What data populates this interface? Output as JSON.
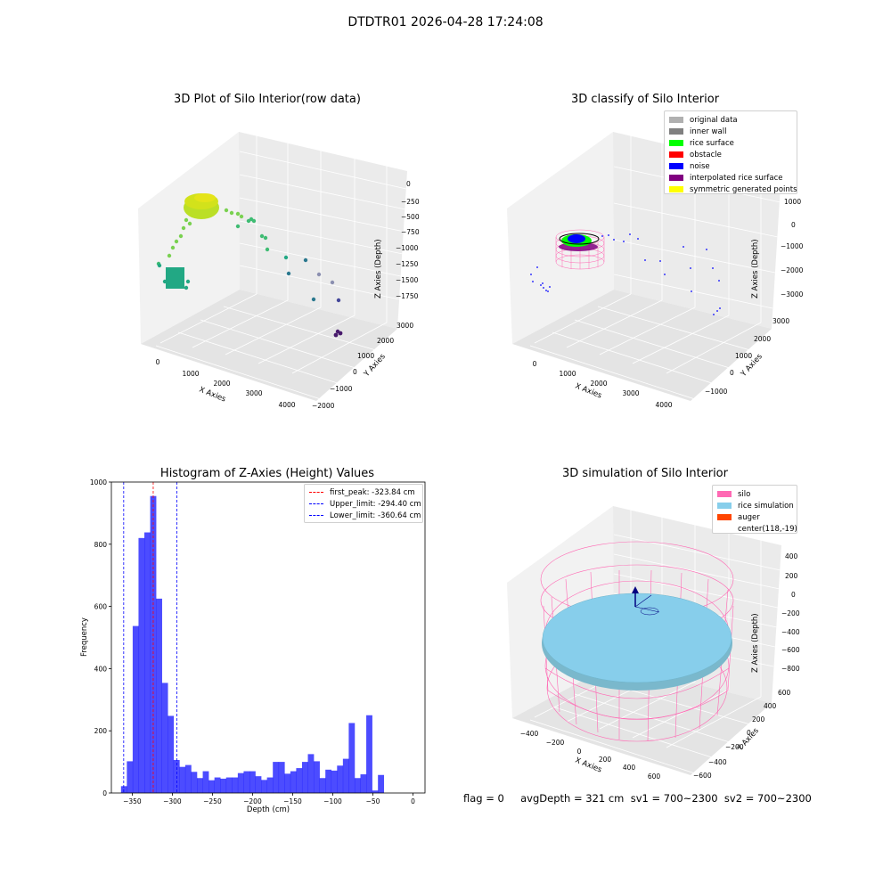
{
  "suptitle": "DTDTR01 2026-04-28 17:24:08",
  "footer": {
    "text": "flag = 0     avgDepth = 321 cm  sv1 = 700~2300  sv2 = 700~2300"
  },
  "chart_data": [
    {
      "type": "scatter",
      "title": "3D Plot of Silo Interior(row data)",
      "xlabel": "X Axies",
      "ylabel": "Y Axies",
      "zlabel": "Z Axies (Depth)",
      "x_ticks": [
        "0",
        "1000",
        "2000",
        "3000",
        "4000"
      ],
      "y_ticks": [
        "3000",
        "2000",
        "1000",
        "0",
        "−1000",
        "−2000"
      ],
      "z_ticks": [
        "0",
        "−250",
        "−500",
        "−750",
        "−1000",
        "−1250",
        "−1500",
        "−1750"
      ],
      "colormap": "viridis"
    },
    {
      "type": "scatter",
      "title": "3D classify of Silo Interior",
      "xlabel": "X Axies",
      "ylabel": "Y Axies",
      "zlabel": "Z Axies (Depth)",
      "x_ticks": [
        "0",
        "1000",
        "2000",
        "3000",
        "4000"
      ],
      "y_ticks": [
        "3000",
        "2000",
        "1000",
        "0",
        "−1000"
      ],
      "z_ticks": [
        "1000",
        "0",
        "−1000",
        "−2000",
        "−3000"
      ],
      "legend": [
        {
          "label": "original data",
          "color": "#b0b0b0"
        },
        {
          "label": "inner wall",
          "color": "#808080"
        },
        {
          "label": "rice surface",
          "color": "#00ff00"
        },
        {
          "label": "obstacle",
          "color": "#ff0000"
        },
        {
          "label": "noise",
          "color": "#0000ff"
        },
        {
          "label": "interpolated rice surface",
          "color": "#800080"
        },
        {
          "label": "symmetric generated points",
          "color": "#ffff00"
        }
      ]
    },
    {
      "type": "bar",
      "title": "Histogram of Z-Axies (Height) Values",
      "xlabel": "Depth (cm)",
      "ylabel": "Frequency",
      "xlim": [
        -376,
        15
      ],
      "ylim": [
        0,
        1000
      ],
      "x_ticks": [
        "−350",
        "−300",
        "−250",
        "−200",
        "−150",
        "−100",
        "−50",
        "0"
      ],
      "x_tick_values": [
        -350,
        -300,
        -250,
        -200,
        -150,
        -100,
        -50,
        0
      ],
      "y_ticks": [
        "0",
        "200",
        "400",
        "600",
        "800",
        "1000"
      ],
      "y_tick_values": [
        0,
        200,
        400,
        600,
        800,
        1000
      ],
      "bar_color": "#0000ff",
      "bin_start": -364.0,
      "bin_width": 7.28,
      "values": [
        22,
        102,
        537,
        820,
        838,
        955,
        625,
        354,
        248,
        106,
        84,
        90,
        68,
        48,
        70,
        41,
        50,
        46,
        50,
        50,
        64,
        70,
        70,
        54,
        42,
        50,
        100,
        100,
        62,
        70,
        80,
        100,
        125,
        102,
        48,
        75,
        72,
        88,
        110,
        225,
        48,
        60,
        250,
        8,
        58
      ],
      "vlines": [
        {
          "label": "first_peak: -323.84 cm",
          "x": -323.84,
          "color": "#ff0000"
        },
        {
          "label": "Upper_limit: -294.40 cm",
          "x": -294.4,
          "color": "#0000ff"
        },
        {
          "label": "Lower_limit: -360.64 cm",
          "x": -360.64,
          "color": "#0000ff"
        }
      ]
    },
    {
      "type": "surface",
      "title": "3D simulation of Silo Interior",
      "xlabel": "X Axies",
      "ylabel": "Y Axies",
      "zlabel": "Z Axies (Depth)",
      "x_ticks": [
        "−400",
        "−200",
        "0",
        "200",
        "400",
        "600"
      ],
      "y_ticks": [
        "600",
        "400",
        "200",
        "0",
        "−200",
        "−400",
        "−600"
      ],
      "z_ticks": [
        "400",
        "200",
        "0",
        "−200",
        "−400",
        "−600",
        "−800"
      ],
      "legend": [
        {
          "label": "silo",
          "color": "#ff69b4"
        },
        {
          "label": "rice simulation",
          "color": "#87ceeb"
        },
        {
          "label": "auger",
          "color": "#ff4500"
        },
        {
          "label": "center(118,-19)",
          "color": ""
        }
      ]
    }
  ]
}
